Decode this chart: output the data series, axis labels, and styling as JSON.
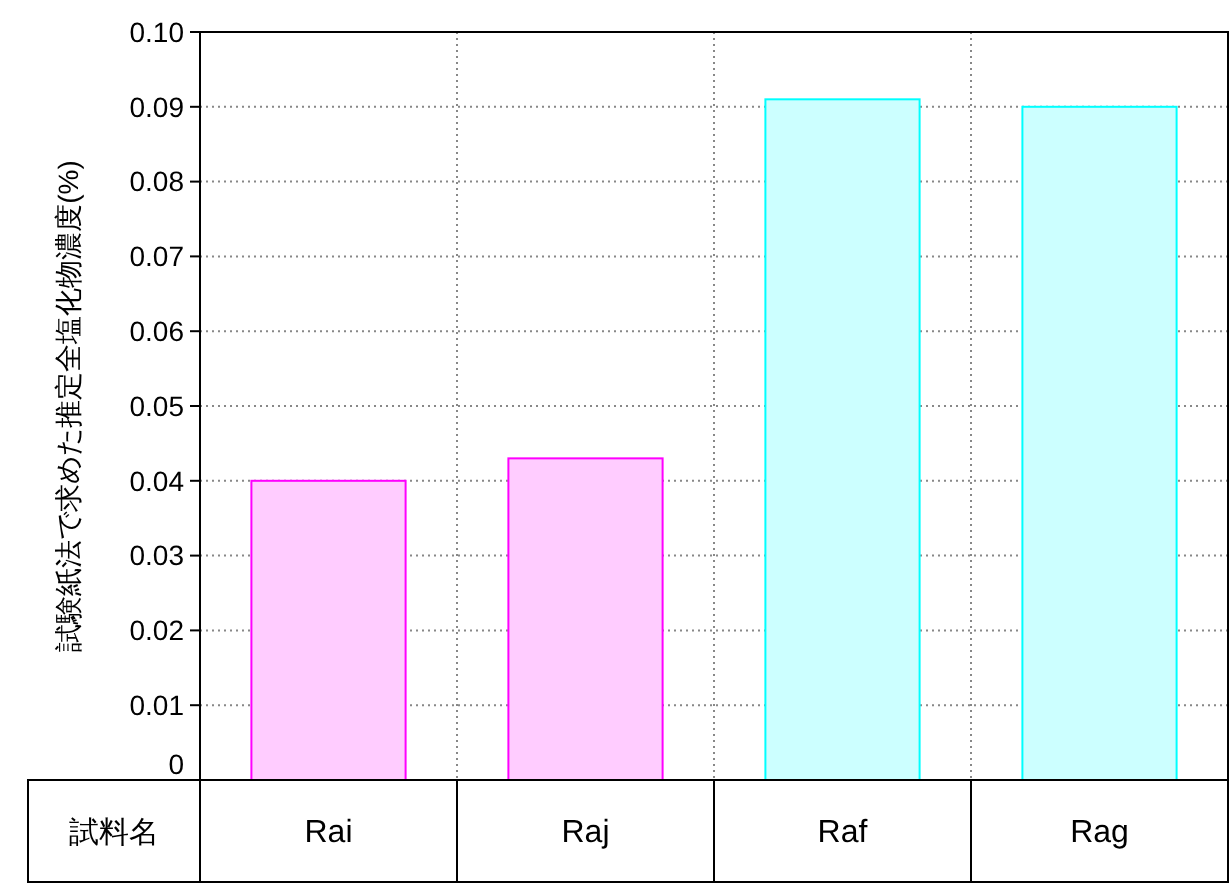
{
  "chart_data": {
    "type": "bar",
    "ylabel": "試験紙法で求めた推定全塩化物濃度(%)",
    "xlabel": "試料名",
    "categories": [
      "Rai",
      "Raj",
      "Raf",
      "Rag"
    ],
    "values": [
      0.04,
      0.043,
      0.091,
      0.09
    ],
    "colors": [
      "#ffccff",
      "#ffccff",
      "#ccffff",
      "#ccffff"
    ],
    "ylim": [
      0,
      0.1
    ],
    "yticks": [
      {
        "value": 0,
        "label": "0"
      },
      0.01,
      0.02,
      0.03,
      0.04,
      0.05,
      0.06,
      0.07,
      0.08,
      0.09,
      {
        "value": 0.1,
        "label": "0.10"
      }
    ],
    "grid": true
  }
}
